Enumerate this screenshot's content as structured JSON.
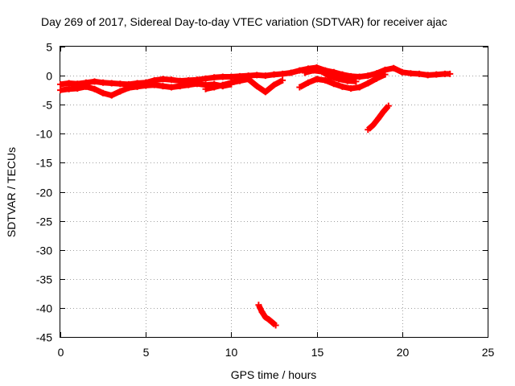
{
  "chart_data": {
    "type": "line",
    "title": "Day 269 of 2017, Sidereal Day-to-day VTEC variation (SDTVAR) for receiver ajac",
    "xlabel": "GPS time / hours",
    "ylabel": "SDTVAR / TECUs",
    "xlim": [
      0,
      25
    ],
    "ylim": [
      -45,
      5
    ],
    "xticks": [
      0,
      5,
      10,
      15,
      20,
      25
    ],
    "yticks": [
      5,
      0,
      -5,
      -10,
      -15,
      -20,
      -25,
      -30,
      -35,
      -40,
      -45
    ],
    "grid": true,
    "series": [
      {
        "name": "main-band-upper",
        "color": "#ff0000",
        "x": [
          0,
          0.5,
          1,
          1.5,
          2,
          2.5,
          3,
          3.5,
          4,
          4.5,
          5,
          5.5,
          6,
          6.5,
          7,
          7.5,
          8,
          8.5,
          9,
          9.5,
          10,
          10.5,
          11,
          11.5,
          12,
          12.5,
          13,
          13.5,
          14,
          14.5,
          15,
          15.5,
          16,
          16.5,
          17,
          17.5,
          18,
          18.5,
          19,
          19.5,
          20,
          20.5,
          21,
          21.5,
          22,
          22.5,
          22.8
        ],
        "y": [
          -1.5,
          -1.3,
          -1.4,
          -1.2,
          -1.0,
          -1.2,
          -1.3,
          -1.4,
          -1.5,
          -1.3,
          -1.2,
          -0.8,
          -0.6,
          -0.7,
          -0.9,
          -0.8,
          -0.7,
          -0.5,
          -0.3,
          -0.2,
          -0.2,
          -0.1,
          0.0,
          0.1,
          0.0,
          0.2,
          0.3,
          0.5,
          0.9,
          1.2,
          1.4,
          0.9,
          0.6,
          0.2,
          -0.1,
          -0.2,
          0.0,
          0.4,
          1.0,
          1.3,
          0.6,
          0.4,
          0.3,
          0.1,
          0.2,
          0.3,
          0.3
        ]
      },
      {
        "name": "main-band-lower",
        "color": "#ff0000",
        "x": [
          0,
          0.5,
          1,
          1.5,
          2,
          2.5,
          3,
          3.5,
          4,
          4.5,
          5,
          5.5,
          6,
          6.5,
          7,
          7.5,
          8,
          8.5,
          9,
          9.5,
          10
        ],
        "y": [
          -2.5,
          -2.3,
          -2.2,
          -1.9,
          -2.3,
          -3.0,
          -3.4,
          -2.7,
          -2.1,
          -1.9,
          -1.7,
          -1.6,
          -1.8,
          -2.0,
          -1.8,
          -1.6,
          -1.4,
          -1.6,
          -1.5,
          -1.8,
          -1.5
        ]
      },
      {
        "name": "midday-dip",
        "color": "#ff0000",
        "x": [
          8.5,
          9.0,
          9.5,
          10.0,
          10.5,
          11.0,
          11.5,
          12.0,
          12.5,
          13.0
        ],
        "y": [
          -2.3,
          -2.0,
          -1.6,
          -1.2,
          -0.9,
          -0.6,
          -1.8,
          -2.8,
          -1.6,
          -0.8
        ]
      },
      {
        "name": "afternoon-lower",
        "color": "#ff0000",
        "x": [
          14.0,
          14.5,
          15.0,
          15.5,
          16.0,
          16.5,
          17.0,
          17.5,
          18.0,
          18.5,
          19.0
        ],
        "y": [
          -2.0,
          -1.2,
          -0.6,
          -0.8,
          -1.4,
          -1.9,
          -2.2,
          -2.0,
          -1.3,
          -0.5,
          0.2
        ]
      },
      {
        "name": "afternoon-mid",
        "color": "#ff0000",
        "x": [
          14.3,
          14.8,
          15.3,
          15.8,
          16.3,
          16.8,
          17.3
        ],
        "y": [
          0.5,
          0.9,
          0.7,
          -0.2,
          -0.6,
          -0.9,
          -1.0
        ]
      },
      {
        "name": "evening-drop",
        "color": "#ff0000",
        "x": [
          18.0,
          18.3,
          18.6,
          18.9,
          19.2
        ],
        "y": [
          -9.3,
          -8.5,
          -7.4,
          -6.2,
          -5.2
        ]
      },
      {
        "name": "noon-outlier",
        "color": "#ff0000",
        "x": [
          11.6,
          11.8,
          12.0,
          12.2,
          12.4,
          12.6
        ],
        "y": [
          -39.5,
          -40.7,
          -41.6,
          -42.0,
          -42.5,
          -43.0
        ]
      }
    ]
  }
}
